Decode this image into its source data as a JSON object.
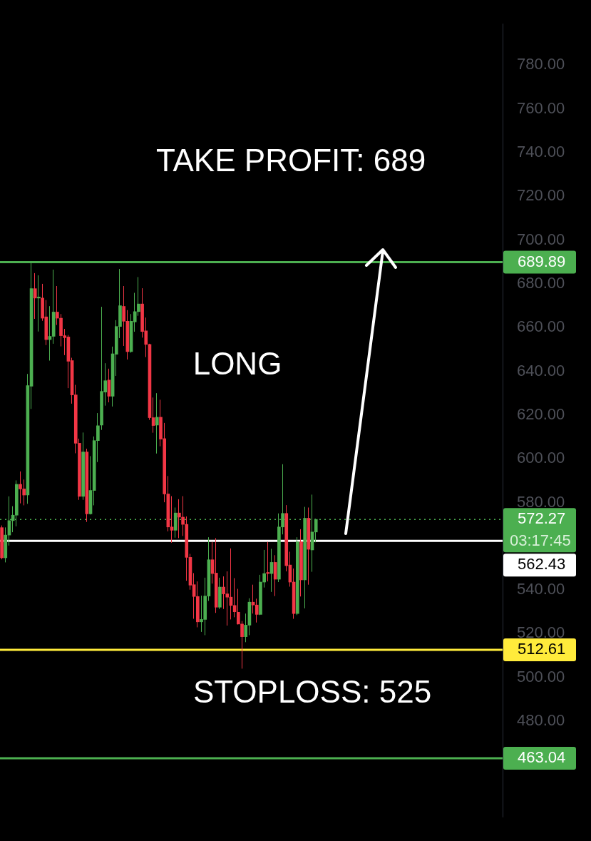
{
  "chart_data": {
    "type": "candlestick",
    "categories": [
      null,
      null,
      null,
      null,
      null,
      null,
      null,
      null,
      null,
      null,
      null,
      null,
      null,
      null,
      null,
      null,
      null,
      null,
      null,
      null,
      null,
      null,
      null,
      null,
      null,
      null,
      null,
      null,
      null,
      null,
      null,
      null,
      null,
      null,
      null,
      null,
      null,
      null,
      null,
      null,
      null,
      null,
      null,
      null,
      null,
      null,
      null,
      null,
      null,
      null,
      null,
      null,
      null,
      null,
      null,
      null,
      null,
      null,
      null,
      null,
      null,
      null,
      null,
      null,
      null,
      null,
      null,
      null,
      null,
      null,
      null,
      null,
      null,
      null,
      null,
      null,
      null,
      null,
      null,
      null,
      null,
      null,
      null,
      null,
      null,
      null,
      null,
      null,
      null,
      null,
      null,
      null,
      null,
      null,
      null,
      null,
      null,
      null,
      null,
      null,
      null,
      null,
      null,
      null,
      null,
      null,
      null,
      null,
      null,
      null,
      null,
      null,
      null,
      null,
      null,
      null,
      null,
      null,
      null,
      null,
      null,
      null,
      null,
      null,
      null,
      null,
      null,
      null,
      null,
      null,
      null,
      null,
      null,
      null,
      null,
      null
    ],
    "ohlc": [
      [
        568.5,
        569.5,
        554,
        554.7
      ],
      [
        554.7,
        568.6,
        552.6,
        565.1
      ],
      [
        565.1,
        582.8,
        560.3,
        571.7
      ],
      [
        571.7,
        578.3,
        566.4,
        574.2
      ],
      [
        574.2,
        590.1,
        569.1,
        588.3
      ],
      [
        588.3,
        594.2,
        579.6,
        586.2
      ],
      [
        586.2,
        590.5,
        578.7,
        583.4
      ],
      [
        583.4,
        638.8,
        579.4,
        633.5
      ],
      [
        633.2,
        689.5,
        622.8,
        677.8
      ],
      [
        677.8,
        684.9,
        664,
        673.5
      ],
      [
        673.5,
        683.9,
        658.2,
        674
      ],
      [
        673.5,
        680,
        663.1,
        664.3
      ],
      [
        664.9,
        672.6,
        652,
        654.5
      ],
      [
        654.5,
        669.8,
        644.9,
        656
      ],
      [
        656,
        686.5,
        652.6,
        667.1
      ],
      [
        667.1,
        679,
        661.2,
        664.3
      ],
      [
        664.3,
        666.2,
        651.4,
        656.3
      ],
      [
        656.3,
        659.4,
        647.4,
        655.4
      ],
      [
        655.7,
        656.6,
        632.3,
        644.6
      ],
      [
        644.9,
        646.2,
        625.2,
        629.2
      ],
      [
        629.2,
        633.8,
        602.5,
        607.1
      ],
      [
        607.1,
        609.2,
        581.2,
        582.8
      ],
      [
        582.8,
        612,
        581.2,
        603.1
      ],
      [
        603.1,
        604.6,
        571.1,
        574.8
      ],
      [
        574.8,
        601.2,
        574.5,
        585.5
      ],
      [
        585.5,
        610.2,
        578.7,
        608.3
      ],
      [
        608.3,
        620.9,
        598.5,
        615.1
      ],
      [
        615.4,
        669.5,
        613.2,
        630.8
      ],
      [
        630.5,
        643.7,
        624.3,
        635.7
      ],
      [
        636,
        641.2,
        625.8,
        628.6
      ],
      [
        628.6,
        651.3,
        623.9,
        648
      ],
      [
        647.8,
        663.4,
        637.9,
        660.5
      ],
      [
        660.5,
        686.8,
        655.2,
        670
      ],
      [
        669.7,
        679,
        651.6,
        662.9
      ],
      [
        662.9,
        668,
        645.4,
        649
      ],
      [
        649,
        666.2,
        648.5,
        662.9
      ],
      [
        662.6,
        675.9,
        658.1,
        667.3
      ],
      [
        667.3,
        683.1,
        665.4,
        670.8
      ],
      [
        670.8,
        678,
        655.4,
        658.2
      ],
      [
        658.5,
        664.6,
        646.5,
        652.3
      ],
      [
        652.3,
        652.6,
        617.8,
        618.8
      ],
      [
        618.8,
        628,
        611.9,
        615.2
      ],
      [
        615.4,
        630,
        602.4,
        619
      ],
      [
        619,
        627,
        605.7,
        609
      ],
      [
        609.2,
        616.4,
        580.1,
        583.9
      ],
      [
        583.9,
        592.1,
        566.8,
        568.8
      ],
      [
        568.8,
        582.9,
        561.6,
        567.3
      ],
      [
        567.3,
        577.7,
        563.9,
        575.2
      ],
      [
        575.2,
        581.5,
        563.7,
        573.3
      ],
      [
        573.3,
        582.9,
        564.7,
        570
      ],
      [
        570,
        573.6,
        544.2,
        554.9
      ],
      [
        554.9,
        556.5,
        540.1,
        542.2
      ],
      [
        542.4,
        547.7,
        526.8,
        537
      ],
      [
        537,
        543.9,
        522.9,
        525.4
      ],
      [
        525.4,
        537.4,
        520.8,
        526.5
      ],
      [
        526.5,
        545.6,
        519.3,
        537.2
      ],
      [
        537.2,
        564.1,
        535,
        553.8
      ],
      [
        553.8,
        562,
        542.9,
        547.5
      ],
      [
        547.7,
        563.7,
        529.5,
        532.1
      ],
      [
        532.1,
        545.6,
        531.3,
        541.3
      ],
      [
        541.3,
        546.2,
        531.3,
        538.2
      ],
      [
        538.2,
        548.5,
        523.7,
        536.7
      ],
      [
        536.7,
        559,
        526.5,
        532.9
      ],
      [
        532.9,
        545.4,
        527.5,
        530
      ],
      [
        529.8,
        540.5,
        524.2,
        524.4
      ],
      [
        524.4,
        525.8,
        504,
        518.6
      ],
      [
        518.6,
        529.2,
        516.1,
        523.9
      ],
      [
        523.9,
        536.2,
        519.3,
        534.4
      ],
      [
        534.4,
        542.4,
        529.2,
        533.1
      ],
      [
        533.1,
        536,
        525.1,
        528.8
      ],
      [
        528.8,
        546.9,
        528.5,
        543.6
      ],
      [
        543.6,
        558.3,
        541.1,
        547.5
      ],
      [
        548,
        562,
        543.9,
        547.5
      ],
      [
        547.5,
        558.8,
        539.1,
        552.6
      ],
      [
        552.6,
        555.9,
        537.2,
        544.9
      ],
      [
        544.9,
        575,
        543.6,
        568.8
      ],
      [
        568.8,
        597.5,
        565.4,
        575
      ],
      [
        575,
        578.8,
        548.5,
        551.1
      ],
      [
        551.4,
        557.5,
        541.5,
        543.6
      ],
      [
        543.6,
        549.8,
        526.8,
        529.2
      ],
      [
        529.2,
        564.1,
        528.5,
        562
      ],
      [
        562,
        567.8,
        537,
        544.6
      ],
      [
        544.6,
        578,
        531.6,
        572.8
      ],
      [
        572.8,
        577.7,
        542.4,
        558.6
      ],
      [
        558.3,
        583.6,
        548.3,
        566.5
      ],
      [
        566.5,
        572.6,
        561.8,
        572.27
      ],
      null,
      null,
      null,
      null,
      null,
      null,
      null,
      null,
      null,
      null,
      null,
      null,
      null,
      null,
      null,
      null,
      null,
      null,
      null,
      null,
      null,
      null,
      null,
      null,
      null,
      null,
      null,
      null,
      null,
      null,
      null,
      null,
      null,
      null,
      null,
      null,
      null,
      null,
      null,
      null,
      null,
      null,
      null,
      null,
      null,
      null,
      null,
      null,
      null,
      null
    ],
    "colors": [
      "#f23645",
      "#4caf50",
      "#4caf50",
      "#4caf50",
      "#4caf50",
      "#f23645",
      "#f23645",
      "#4caf50",
      "#4caf50",
      "#f23645",
      "#4caf50",
      "#f23645",
      "#f23645",
      "#4caf50",
      "#4caf50",
      "#f23645",
      "#f23645",
      "#f23645",
      "#f23645",
      "#f23645",
      "#f23645",
      "#f23645",
      "#4caf50",
      "#f23645",
      "#4caf50",
      "#4caf50",
      "#4caf50",
      "#4caf50",
      "#4caf50",
      "#f23645",
      "#4caf50",
      "#4caf50",
      "#4caf50",
      "#f23645",
      "#f23645",
      "#4caf50",
      "#4caf50",
      "#4caf50",
      "#f23645",
      "#f23645",
      "#f23645",
      "#f23645",
      "#4caf50",
      "#f23645",
      "#f23645",
      "#f23645",
      "#f23645",
      "#4caf50",
      "#f23645",
      "#f23645",
      "#f23645",
      "#f23645",
      "#f23645",
      "#f23645",
      "#4caf50",
      "#4caf50",
      "#4caf50",
      "#f23645",
      "#f23645",
      "#4caf50",
      "#f23645",
      "#f23645",
      "#f23645",
      "#f23645",
      "#f23645",
      "#f23645",
      "#4caf50",
      "#4caf50",
      "#f23645",
      "#f23645",
      "#4caf50",
      "#4caf50",
      "#f23645",
      "#4caf50",
      "#f23645",
      "#4caf50",
      "#4caf50",
      "#f23645",
      "#f23645",
      "#f23645",
      "#4caf50",
      "#f23645",
      "#4caf50",
      "#f23645",
      "#4caf50",
      "#4caf50",
      null,
      null,
      null,
      null,
      null,
      null,
      null,
      null,
      null,
      null,
      null,
      null,
      null,
      null,
      null,
      null,
      null,
      null,
      null,
      null,
      null,
      null,
      null,
      null,
      null,
      null,
      null,
      null,
      null,
      null,
      null,
      null,
      null,
      null,
      null,
      null,
      null,
      null,
      null,
      null,
      null,
      null,
      null,
      null,
      null,
      null,
      null,
      null,
      null,
      null
    ],
    "ylim": [
      436,
      799
    ],
    "yticks": [
      {
        "value": 480,
        "label": "480.00"
      },
      {
        "value": 500,
        "label": "500.00"
      },
      {
        "value": 520,
        "label": "520.00"
      },
      {
        "value": 540,
        "label": "540.00"
      },
      {
        "value": 580,
        "label": "580.00"
      },
      {
        "value": 600,
        "label": "600.00"
      },
      {
        "value": 620,
        "label": "620.00"
      },
      {
        "value": 640,
        "label": "640.00"
      },
      {
        "value": 660,
        "label": "660.00"
      },
      {
        "value": 680,
        "label": "680.00"
      },
      {
        "value": 700,
        "label": "700.00"
      },
      {
        "value": 720,
        "label": "720.00"
      },
      {
        "value": 740,
        "label": "740.00"
      },
      {
        "value": 760,
        "label": "760.00"
      },
      {
        "value": 780,
        "label": "780.00"
      }
    ],
    "tick_labels": "y",
    "ref_lines": [
      {
        "axis": "y",
        "value": 689.89,
        "label": "689.89",
        "color": "#4caf50",
        "line_style": "solid"
      },
      {
        "axis": "y",
        "value": 572.27,
        "label": "572.27",
        "color": "#4caf50",
        "line_style": "dotted"
      },
      {
        "axis": "y",
        "value": 562.43,
        "label": "562.43",
        "color": "#ffffff",
        "line_style": "solid"
      },
      {
        "axis": "y",
        "value": 512.61,
        "label": "512.61",
        "color": "#ffeb3b",
        "line_style": "solid"
      },
      {
        "axis": "y",
        "value": 463.04,
        "label": "463.04",
        "color": "#4caf50",
        "line_style": "solid"
      }
    ],
    "annotations": [
      "TAKE PROFIT: 689",
      "LONG",
      "STOPLOSS: 525",
      "03:17:45"
    ]
  }
}
